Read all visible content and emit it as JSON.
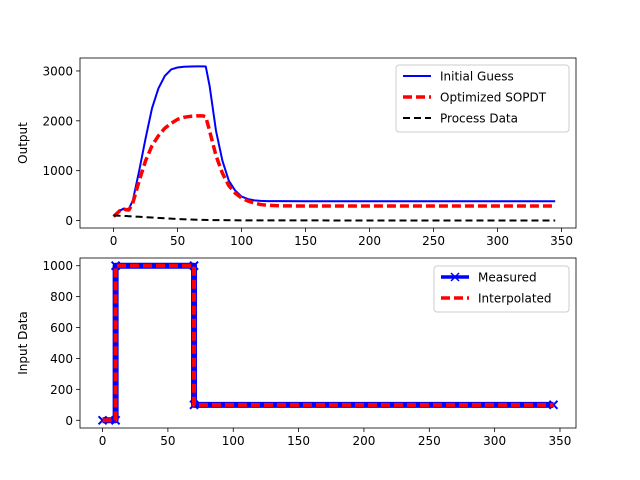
{
  "chart_data": [
    {
      "type": "line",
      "ylabel": "Output",
      "xlim": [
        -26.25,
        361.25
      ],
      "ylim": [
        -150,
        3260
      ],
      "xticks": [
        0,
        50,
        100,
        150,
        200,
        250,
        300,
        350
      ],
      "yticks": [
        0,
        1000,
        2000,
        3000
      ],
      "grid": false,
      "legend_position": "top-right",
      "series": [
        {
          "name": "Initial Guess",
          "color": "#0000ff",
          "style": "solid",
          "x": [
            0,
            5,
            8,
            10,
            12,
            15,
            20,
            25,
            30,
            35,
            40,
            45,
            50,
            55,
            60,
            65,
            70,
            72,
            75,
            80,
            85,
            90,
            95,
            100,
            105,
            110,
            115,
            120,
            130,
            150,
            200,
            250,
            300,
            345
          ],
          "y": [
            80,
            200,
            240,
            230,
            240,
            400,
            1000,
            1650,
            2250,
            2650,
            2900,
            3030,
            3070,
            3085,
            3090,
            3092,
            3093,
            3090,
            2700,
            1800,
            1200,
            800,
            600,
            480,
            430,
            405,
            395,
            390,
            388,
            387,
            387,
            387,
            387,
            387
          ]
        },
        {
          "name": "Optimized SOPDT",
          "color": "#ff0000",
          "style": "dashed",
          "x": [
            0,
            5,
            8,
            10,
            12,
            15,
            20,
            25,
            30,
            35,
            40,
            45,
            50,
            55,
            60,
            65,
            70,
            72,
            75,
            80,
            85,
            90,
            95,
            100,
            105,
            110,
            115,
            120,
            130,
            150,
            200,
            250,
            300,
            345
          ],
          "y": [
            80,
            200,
            230,
            215,
            210,
            350,
            800,
            1200,
            1500,
            1700,
            1850,
            1950,
            2030,
            2070,
            2090,
            2100,
            2100,
            2080,
            1800,
            1300,
            950,
            700,
            550,
            450,
            390,
            350,
            320,
            305,
            295,
            290,
            290,
            290,
            290,
            290
          ]
        },
        {
          "name": "Process Data",
          "color": "#000000",
          "style": "dashed",
          "x": [
            0,
            10,
            20,
            30,
            40,
            50,
            60,
            70,
            80,
            100,
            150,
            200,
            250,
            300,
            345
          ],
          "y": [
            100,
            90,
            75,
            60,
            45,
            30,
            20,
            12,
            8,
            4,
            2,
            1,
            0,
            0,
            0
          ]
        }
      ]
    },
    {
      "type": "line",
      "ylabel": "Input Data",
      "xlim": [
        -17.25,
        362.25
      ],
      "ylim": [
        -50,
        1050
      ],
      "xticks": [
        0,
        50,
        100,
        150,
        200,
        250,
        300,
        350
      ],
      "yticks": [
        0,
        200,
        400,
        600,
        800,
        1000
      ],
      "grid": false,
      "legend_position": "top-right",
      "series": [
        {
          "name": "Measured",
          "color": "#0000ff",
          "style": "solid",
          "marker": "x",
          "x": [
            0,
            10,
            10,
            70,
            70,
            345
          ],
          "y": [
            0,
            0,
            1000,
            1000,
            100,
            100
          ]
        },
        {
          "name": "Interpolated",
          "color": "#ff0000",
          "style": "dashed",
          "x": [
            0,
            10,
            10,
            70,
            70,
            345
          ],
          "y": [
            0,
            0,
            1000,
            1000,
            100,
            100
          ]
        }
      ]
    }
  ]
}
